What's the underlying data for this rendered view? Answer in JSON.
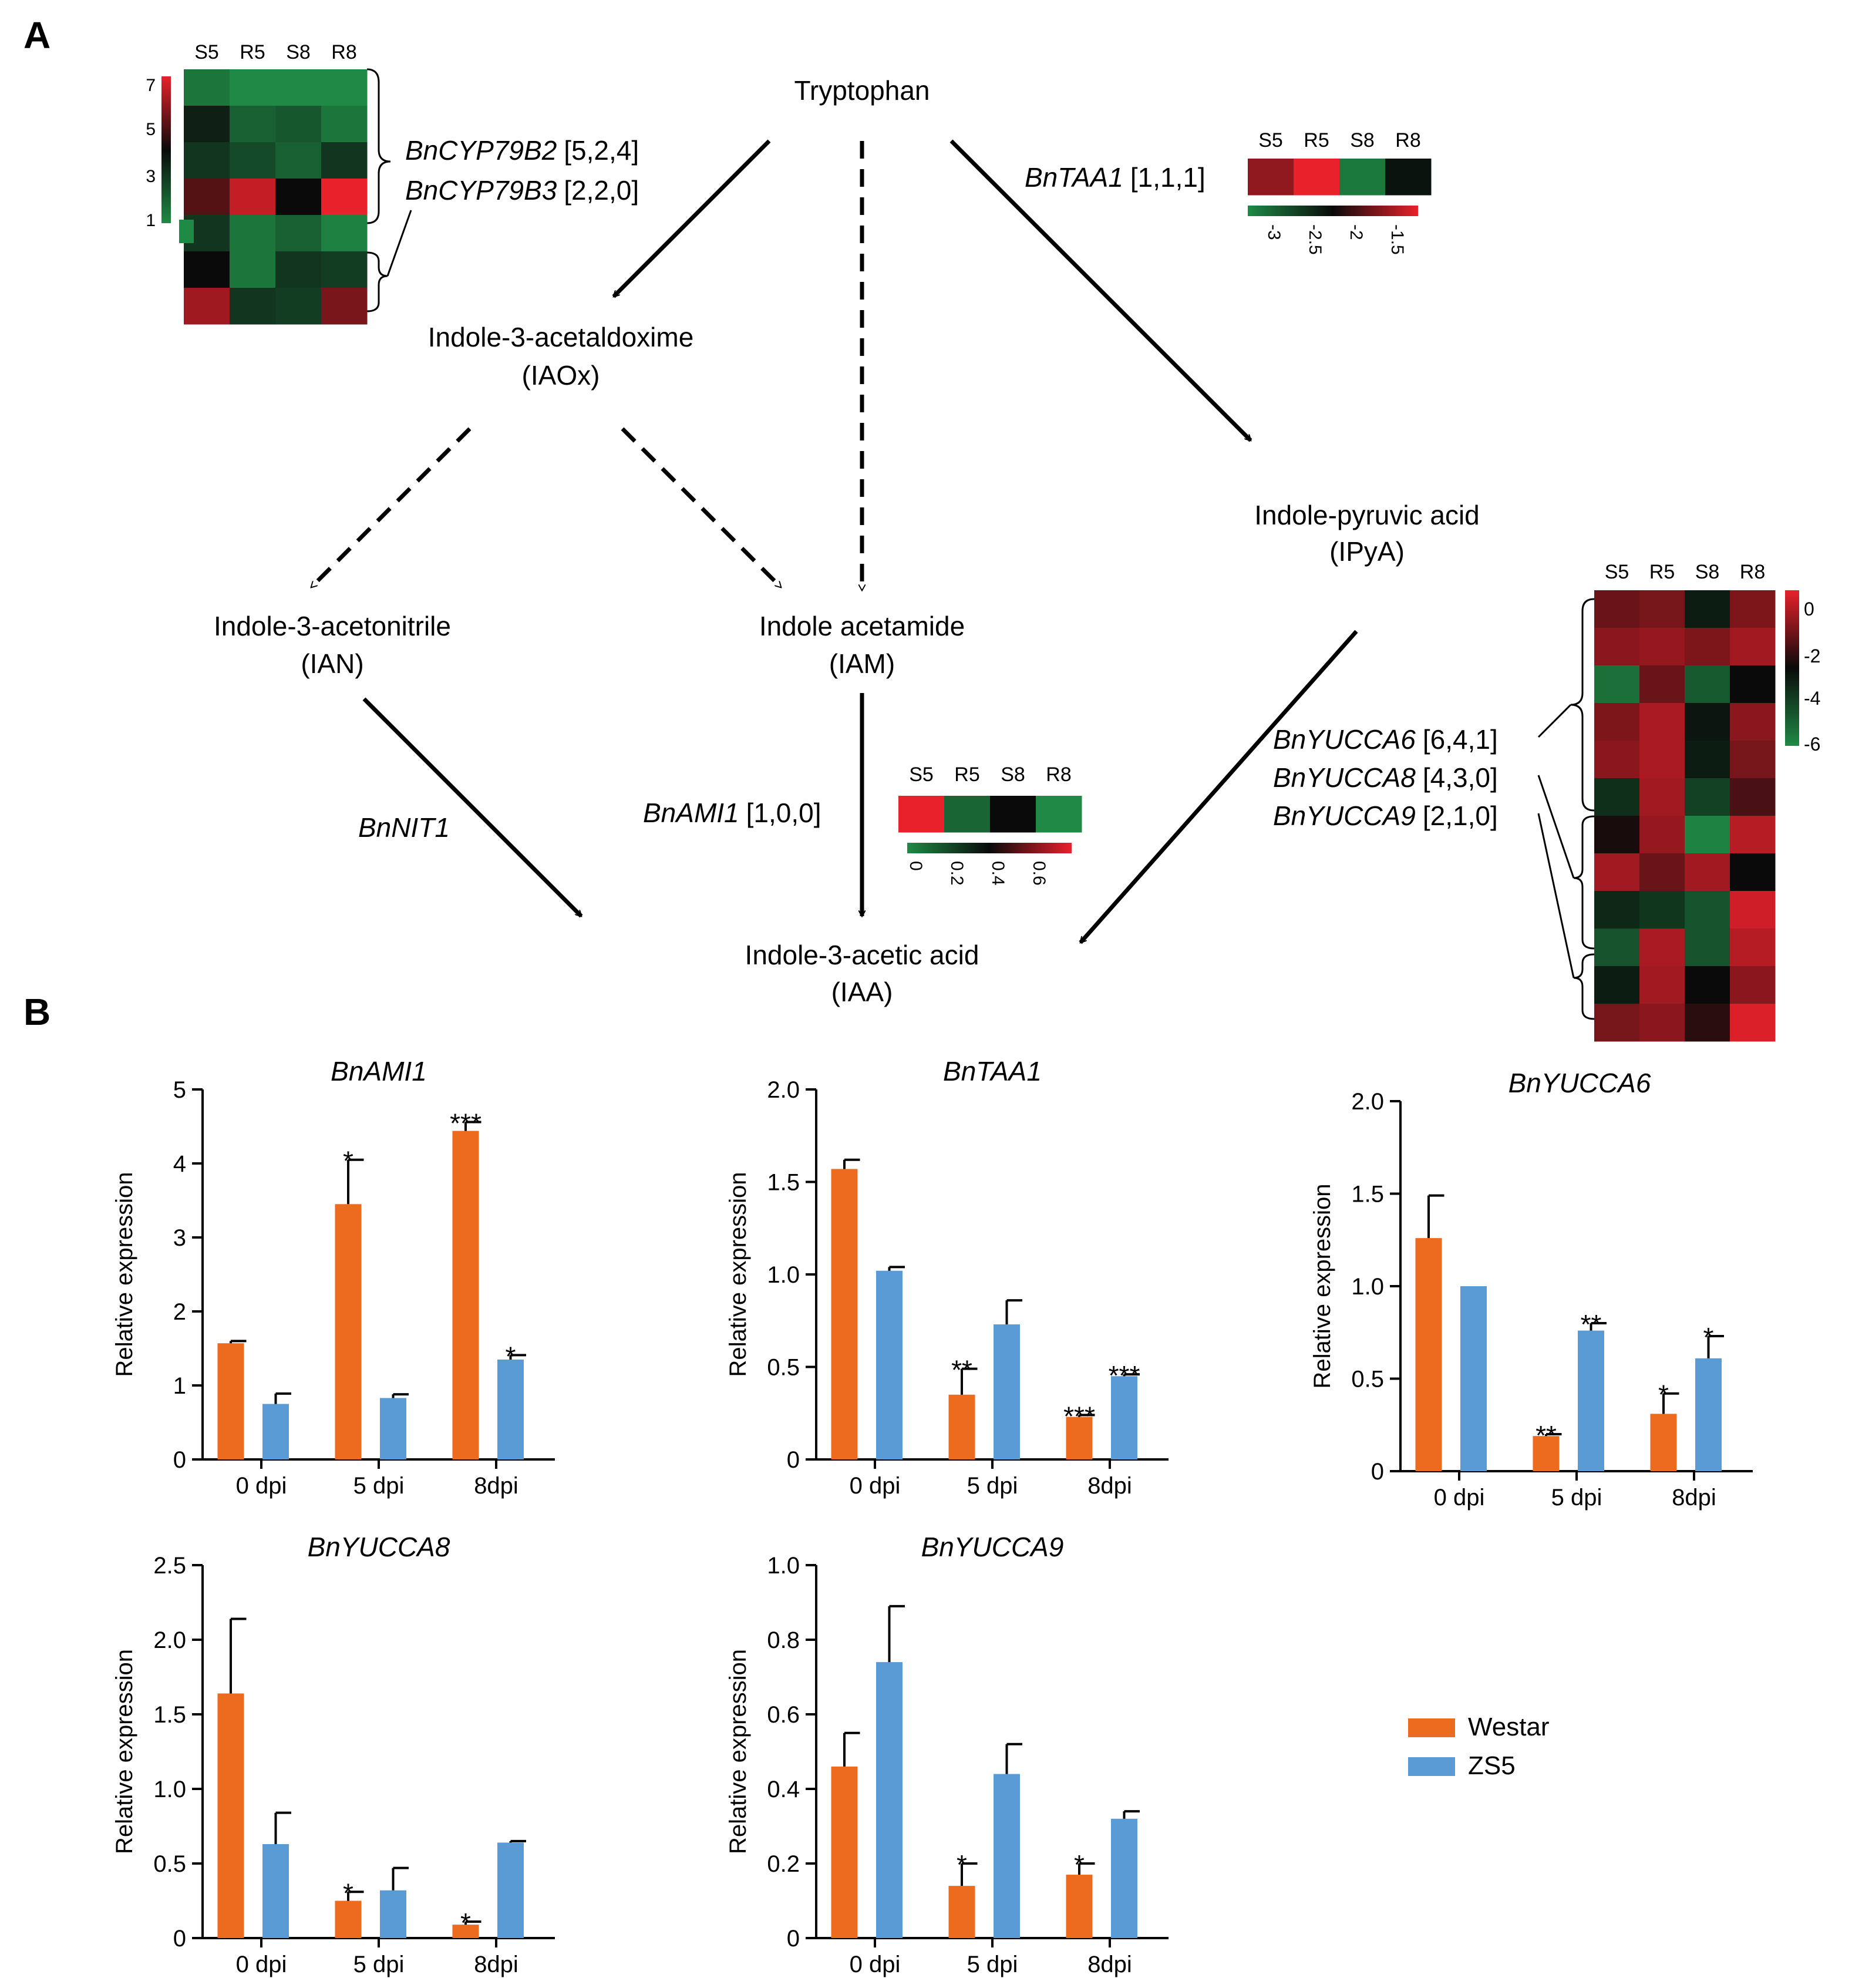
{
  "panels": {
    "a": "A",
    "b": "B"
  },
  "colors": {
    "westar": "#ED6B1E",
    "zs5": "#5B9BD5",
    "heat_low": "#1F8A45",
    "heat_mid": "#0A0A0A",
    "heat_high": "#E8212B"
  },
  "pathway": {
    "nodes": {
      "tryptophan": "Tryptophan",
      "iaox_name": "Indole-3-acetaldoxime",
      "iaox_abbr": "(IAOx)",
      "ipya_name": "Indole-pyruvic acid",
      "ipya_abbr": "(IPyA)",
      "ian_name": "Indole-3-acetonitrile",
      "ian_abbr": "(IAN)",
      "iam_name": "Indole acetamide",
      "iam_abbr": "(IAM)",
      "iaa_name": "Indole-3-acetic acid",
      "iaa_abbr": "(IAA)"
    },
    "genes": {
      "cyp79b2": "BnCYP79B2",
      "cyp79b2_counts": "[5,2,4]",
      "cyp79b3": "BnCYP79B3",
      "cyp79b3_counts": "[2,2,0]",
      "taa1": "BnTAA1",
      "taa1_counts": "[1,1,1]",
      "nit1": "BnNIT1",
      "ami1": "BnAMI1",
      "ami1_counts": "[1,0,0]",
      "yucca6": "BnYUCCA6",
      "yucca6_counts": "[6,4,1]",
      "yucca8": "BnYUCCA8",
      "yucca8_counts": "[4,3,0]",
      "yucca9": "BnYUCCA9",
      "yucca9_counts": "[2,1,0]"
    },
    "heatmap_columns": [
      "S5",
      "R5",
      "S8",
      "R8"
    ],
    "heatmap_cyp": {
      "scale_ticks": [
        "7",
        "5",
        "3",
        "1"
      ],
      "rows": [
        [
          1.5,
          1.0,
          1.0,
          0.8
        ],
        [
          3.5,
          2.0,
          2.2,
          1.5
        ],
        [
          3.0,
          2.5,
          2.0,
          3.0
        ],
        [
          5.0,
          6.5,
          4.0,
          7.0
        ],
        [
          3.0,
          1.5,
          2.0,
          1.2
        ],
        [
          4.0,
          1.5,
          3.0,
          2.8
        ],
        [
          6.0,
          3.0,
          2.8,
          5.5
        ]
      ],
      "range": [
        1,
        7
      ]
    },
    "heatmap_taa1": {
      "values": [
        [
          -1.8,
          -1.5,
          -2.9,
          -2.3
        ]
      ],
      "ticks": [
        "-3",
        "-2.5",
        "-2",
        "-1.5"
      ],
      "range": [
        -3,
        -1.5
      ]
    },
    "heatmap_ami1": {
      "values": [
        [
          0.7,
          0.1,
          0.35,
          0.0
        ]
      ],
      "ticks": [
        "0",
        "0.2",
        "0.4",
        "0.6"
      ],
      "range": [
        0,
        0.7
      ]
    },
    "heatmap_yucca": {
      "scale_ticks": [
        "0",
        "-2",
        "-4",
        "-6"
      ],
      "rows": [
        [
          -1.5,
          -1.3,
          -3.5,
          -1.2
        ],
        [
          -1.0,
          -0.8,
          -1.2,
          -0.6
        ],
        [
          -5.8,
          -1.5,
          -5.2,
          -3.0
        ],
        [
          -1.2,
          -0.5,
          -3.3,
          -1.0
        ],
        [
          -1.0,
          -0.5,
          -3.5,
          -1.3
        ],
        [
          -4.0,
          -0.6,
          -4.5,
          -2.0
        ],
        [
          -2.8,
          -0.8,
          -6.3,
          -0.3
        ],
        [
          -0.6,
          -1.5,
          -0.6,
          -3.0
        ],
        [
          -3.8,
          -4.2,
          -5.0,
          0.1
        ],
        [
          -5.0,
          -0.5,
          -5.0,
          -0.3
        ],
        [
          -3.5,
          -0.6,
          -3.0,
          -1.0
        ],
        [
          -1.3,
          -1.0,
          -2.5,
          0.3
        ]
      ],
      "range": [
        -6.5,
        0.5
      ]
    }
  },
  "legend": [
    "Westar",
    "ZS5"
  ],
  "chart_data": [
    {
      "type": "bar",
      "title": "BnAMI1",
      "ylabel": "Relative expression",
      "categories": [
        "0 dpi",
        "5 dpi",
        "8dpi"
      ],
      "ylim": [
        0,
        5
      ],
      "yticks": [
        "0",
        "1",
        "2",
        "3",
        "4",
        "5"
      ],
      "series": [
        {
          "name": "Westar",
          "values": [
            1.57,
            3.45,
            4.44
          ],
          "errors": [
            0.03,
            0.6,
            0.12
          ],
          "sig": [
            "",
            "*",
            "***"
          ]
        },
        {
          "name": "ZS5",
          "values": [
            0.75,
            0.83,
            1.35
          ],
          "errors": [
            0.14,
            0.05,
            0.06
          ],
          "sig": [
            "",
            "",
            "*"
          ]
        }
      ]
    },
    {
      "type": "bar",
      "title": "BnTAA1",
      "ylabel": "Relative expression",
      "categories": [
        "0 dpi",
        "5 dpi",
        "8dpi"
      ],
      "ylim": [
        0,
        2.0
      ],
      "yticks": [
        "0",
        "0.5",
        "1.0",
        "1.5",
        "2.0"
      ],
      "series": [
        {
          "name": "Westar",
          "values": [
            1.57,
            0.35,
            0.23
          ],
          "errors": [
            0.05,
            0.14,
            0.01
          ],
          "sig": [
            "",
            "**",
            "***"
          ]
        },
        {
          "name": "ZS5",
          "values": [
            1.02,
            0.73,
            0.45
          ],
          "errors": [
            0.02,
            0.13,
            0.01
          ],
          "sig": [
            "",
            "",
            "***"
          ]
        }
      ]
    },
    {
      "type": "bar",
      "title": "BnYUCCA6",
      "ylabel": "Relative expression",
      "categories": [
        "0 dpi",
        "5 dpi",
        "8dpi"
      ],
      "ylim": [
        0,
        2.0
      ],
      "yticks": [
        "0",
        "0.5",
        "1.0",
        "1.5",
        "2.0"
      ],
      "series": [
        {
          "name": "Westar",
          "values": [
            1.26,
            0.19,
            0.31
          ],
          "errors": [
            0.23,
            0.01,
            0.11
          ],
          "sig": [
            "",
            "**",
            "*"
          ]
        },
        {
          "name": "ZS5",
          "values": [
            1.0,
            0.76,
            0.61
          ],
          "errors": [
            0.0,
            0.04,
            0.12
          ],
          "sig": [
            "",
            "**",
            "*"
          ]
        }
      ]
    },
    {
      "type": "bar",
      "title": "BnYUCCA8",
      "ylabel": "Relative expression",
      "categories": [
        "0 dpi",
        "5 dpi",
        "8dpi"
      ],
      "ylim": [
        0,
        2.5
      ],
      "yticks": [
        "0",
        "0.5",
        "1.0",
        "1.5",
        "2.0",
        "2.5"
      ],
      "series": [
        {
          "name": "Westar",
          "values": [
            1.64,
            0.25,
            0.09
          ],
          "errors": [
            0.5,
            0.06,
            0.02
          ],
          "sig": [
            "",
            "*",
            "*"
          ]
        },
        {
          "name": "ZS5",
          "values": [
            0.63,
            0.32,
            0.64
          ],
          "errors": [
            0.21,
            0.15,
            0.01
          ],
          "sig": [
            "",
            "",
            ""
          ]
        }
      ]
    },
    {
      "type": "bar",
      "title": "BnYUCCA9",
      "ylabel": "Relative expression",
      "categories": [
        "0 dpi",
        "5 dpi",
        "8dpi"
      ],
      "ylim": [
        0,
        1.0
      ],
      "yticks": [
        "0",
        "0.2",
        "0.4",
        "0.6",
        "0.8",
        "1.0"
      ],
      "series": [
        {
          "name": "Westar",
          "values": [
            0.46,
            0.14,
            0.17
          ],
          "errors": [
            0.09,
            0.06,
            0.03
          ],
          "sig": [
            "",
            "*",
            "*"
          ]
        },
        {
          "name": "ZS5",
          "values": [
            0.74,
            0.44,
            0.32
          ],
          "errors": [
            0.15,
            0.08,
            0.02
          ],
          "sig": [
            "",
            "",
            ""
          ]
        }
      ]
    }
  ]
}
